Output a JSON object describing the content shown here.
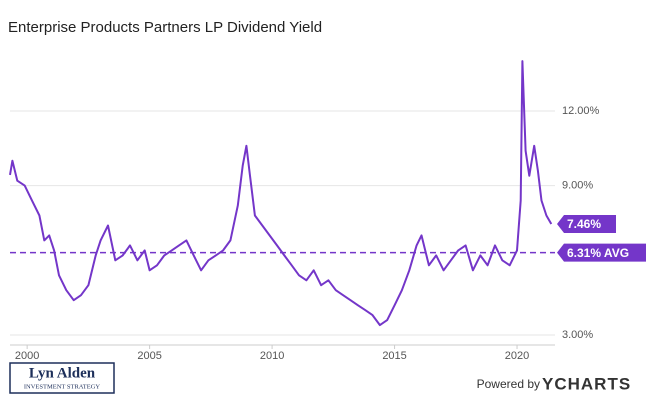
{
  "chart_data": {
    "type": "line",
    "title": "Enterprise Products Partners LP Dividend Yield",
    "x": [
      1999.3,
      1999.4,
      1999.6,
      1999.9,
      2000.2,
      2000.5,
      2000.7,
      2000.9,
      2001.1,
      2001.3,
      2001.6,
      2001.9,
      2002.2,
      2002.5,
      2002.8,
      2003.0,
      2003.3,
      2003.6,
      2003.9,
      2004.2,
      2004.5,
      2004.8,
      2005.0,
      2005.3,
      2005.6,
      2005.9,
      2006.2,
      2006.5,
      2006.8,
      2007.1,
      2007.4,
      2007.7,
      2008.0,
      2008.3,
      2008.6,
      2008.8,
      2008.95,
      2009.1,
      2009.3,
      2009.6,
      2009.9,
      2010.2,
      2010.5,
      2010.8,
      2011.1,
      2011.4,
      2011.7,
      2012.0,
      2012.3,
      2012.6,
      2012.9,
      2013.2,
      2013.5,
      2013.8,
      2014.1,
      2014.4,
      2014.7,
      2015.0,
      2015.3,
      2015.6,
      2015.9,
      2016.1,
      2016.4,
      2016.7,
      2017.0,
      2017.3,
      2017.6,
      2017.9,
      2018.2,
      2018.5,
      2018.8,
      2019.1,
      2019.4,
      2019.7,
      2020.0,
      2020.15,
      2020.22,
      2020.35,
      2020.5,
      2020.7,
      2020.85,
      2021.0,
      2021.2,
      2021.4
    ],
    "series": [
      {
        "name": "Dividend Yield",
        "color": "#7436c9",
        "values": [
          9.43,
          10.0,
          9.2,
          9.0,
          8.4,
          7.8,
          6.8,
          7.0,
          6.4,
          5.4,
          4.8,
          4.4,
          4.6,
          5.0,
          6.2,
          6.8,
          7.4,
          6.0,
          6.2,
          6.6,
          6.0,
          6.4,
          5.6,
          5.8,
          6.2,
          6.4,
          6.6,
          6.8,
          6.2,
          5.6,
          6.0,
          6.2,
          6.4,
          6.8,
          8.2,
          9.8,
          10.6,
          9.4,
          7.8,
          7.4,
          7.0,
          6.6,
          6.2,
          5.8,
          5.4,
          5.2,
          5.6,
          5.0,
          5.2,
          4.8,
          4.6,
          4.4,
          4.2,
          4.0,
          3.8,
          3.4,
          3.6,
          4.2,
          4.8,
          5.6,
          6.6,
          7.0,
          5.8,
          6.2,
          5.6,
          6.0,
          6.4,
          6.6,
          5.6,
          6.2,
          5.8,
          6.6,
          6.0,
          5.8,
          6.4,
          8.4,
          14.0,
          10.4,
          9.4,
          10.6,
          9.6,
          8.4,
          7.8,
          7.46
        ],
        "last_value_label": "7.46%"
      }
    ],
    "average": 6.31,
    "average_label": "6.31% AVG",
    "xlim": [
      1999.3,
      2021.55
    ],
    "xticks": [
      2000,
      2005,
      2010,
      2015,
      2020
    ],
    "ylim": [
      2.6,
      15.05
    ],
    "yticks": [
      {
        "value": 3,
        "label": "3.00%"
      },
      {
        "value": 9,
        "label": "9.00%"
      },
      {
        "value": 12,
        "label": "12.00%"
      }
    ],
    "grid": true
  },
  "branding": {
    "logo_name": "Lyn Alden",
    "logo_tagline": "INVESTMENT STRATEGY",
    "powered_by": "Powered by",
    "provider": "YCHARTS"
  }
}
